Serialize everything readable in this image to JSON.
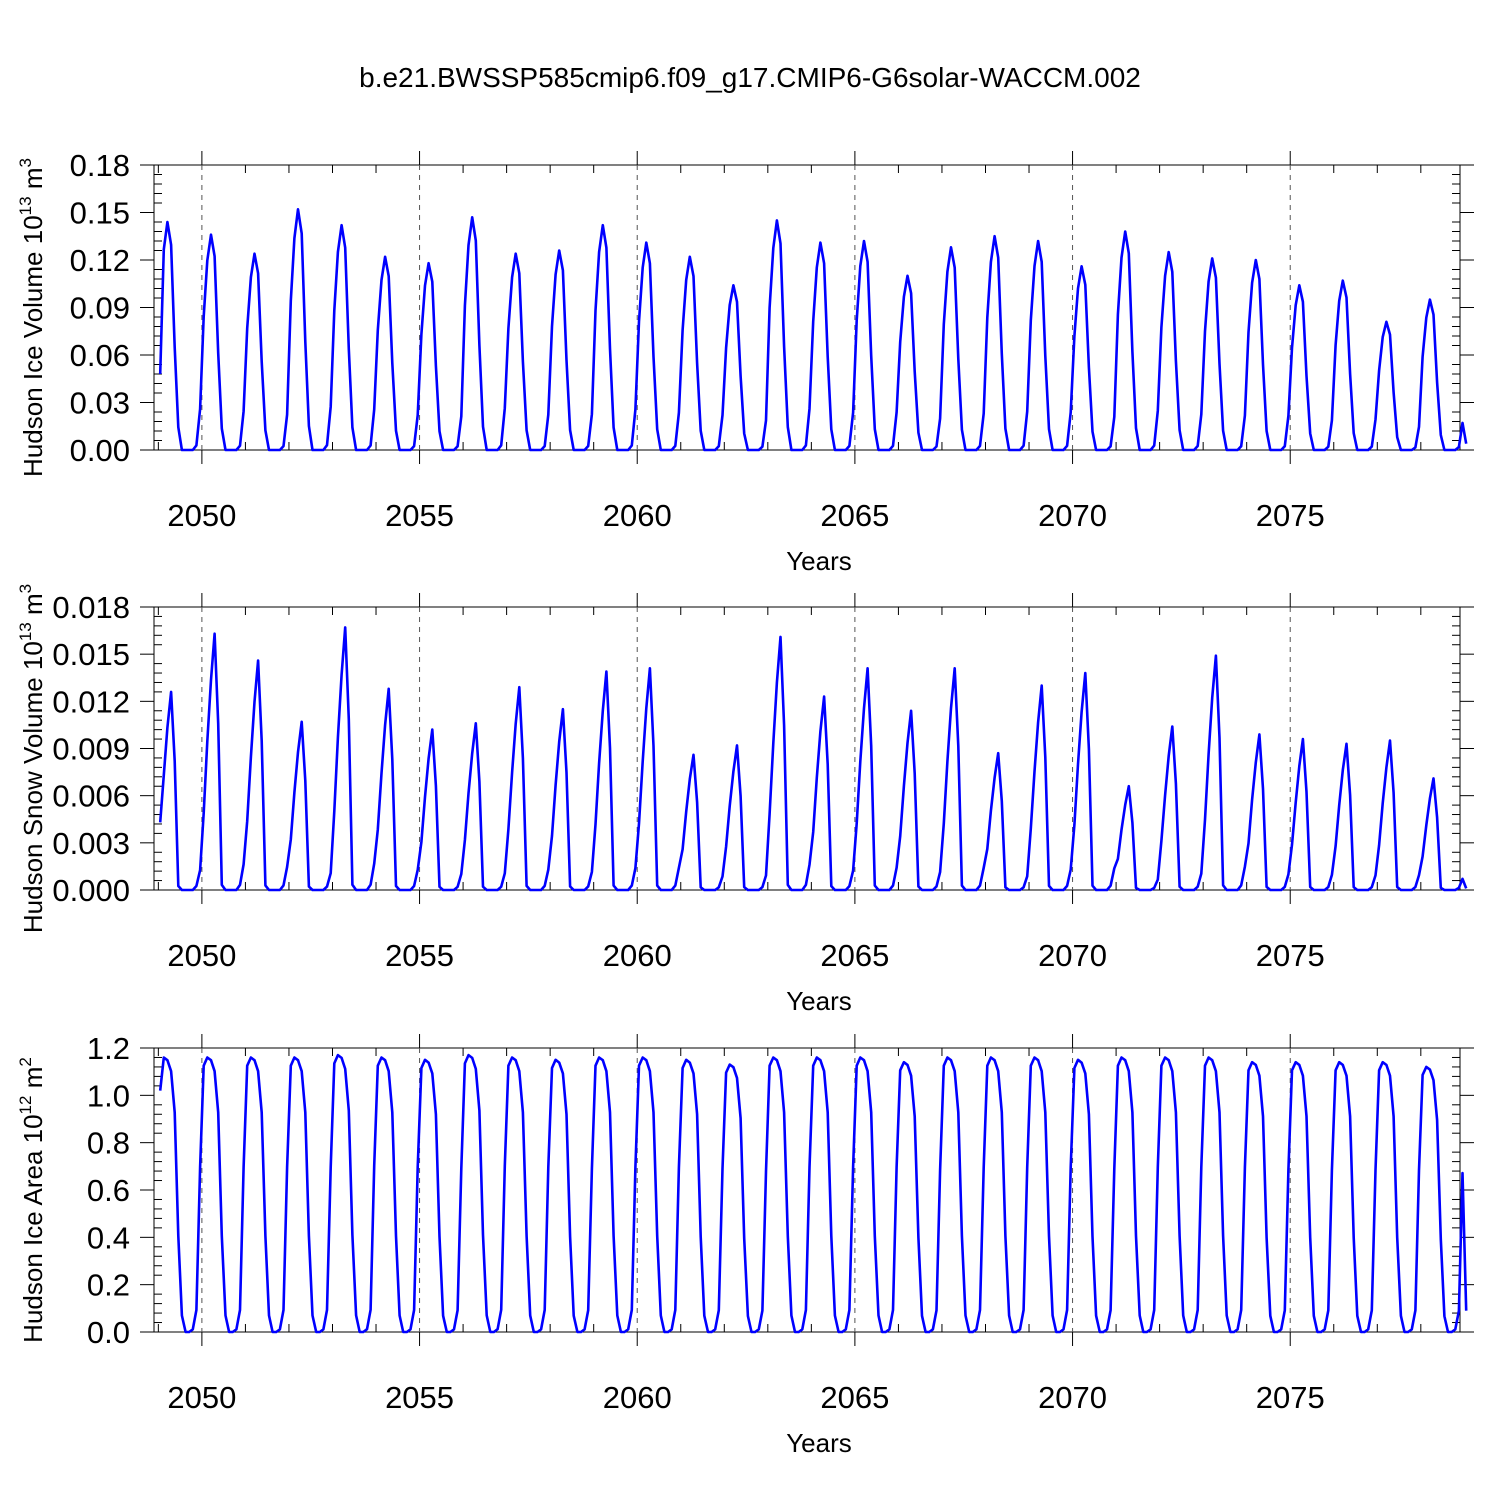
{
  "title": "b.e21.BWSSP585cmip6.f09_g17.CMIP6-G6solar-WACCM.002",
  "line_color": "#0000ff",
  "chart_data": [
    {
      "type": "line",
      "ylabel": "Hudson Ice Volume 10",
      "ylabel_exp": "13",
      "ylabel_unit": " m",
      "ylabel_unit_exp": "3",
      "xlabel": "Years",
      "xlim": [
        2048.9,
        2078.9
      ],
      "ylim": [
        0,
        0.18
      ],
      "yticks": [
        0.0,
        0.03,
        0.06,
        0.09,
        0.12,
        0.15,
        0.18
      ],
      "ytick_labels": [
        "0.00",
        "0.03",
        "0.06",
        "0.09",
        "0.12",
        "0.15",
        "0.18"
      ],
      "xticks": [
        2050,
        2055,
        2060,
        2065,
        2070,
        2075
      ],
      "xtick_labels": [
        "2050",
        "2055",
        "2060",
        "2065",
        "2070",
        "2075"
      ],
      "year_start": 2049,
      "first_value": 0.048,
      "last_value": 0.004,
      "annual_peaks": [
        0.144,
        0.136,
        0.124,
        0.152,
        0.142,
        0.122,
        0.118,
        0.147,
        0.124,
        0.126,
        0.142,
        0.131,
        0.122,
        0.104,
        0.145,
        0.131,
        0.132,
        0.11,
        0.128,
        0.135,
        0.132,
        0.116,
        0.138,
        0.125,
        0.121,
        0.12,
        0.104,
        0.107,
        0.081,
        0.095
      ]
    },
    {
      "type": "line",
      "ylabel": "Hudson Snow Volume 10",
      "ylabel_exp": "13",
      "ylabel_unit": " m",
      "ylabel_unit_exp": "3",
      "xlabel": "Years",
      "xlim": [
        2048.9,
        2078.9
      ],
      "ylim": [
        0,
        0.018
      ],
      "yticks": [
        0.0,
        0.003,
        0.006,
        0.009,
        0.012,
        0.015,
        0.018
      ],
      "ytick_labels": [
        "0.000",
        "0.003",
        "0.006",
        "0.009",
        "0.012",
        "0.015",
        "0.018"
      ],
      "xticks": [
        2050,
        2055,
        2060,
        2065,
        2070,
        2075
      ],
      "xtick_labels": [
        "2050",
        "2055",
        "2060",
        "2065",
        "2070",
        "2075"
      ],
      "year_start": 2049,
      "first_value": 0.0043,
      "last_value": 0.0001,
      "annual_peaks": [
        0.0126,
        0.0163,
        0.0146,
        0.0107,
        0.0167,
        0.0128,
        0.0102,
        0.0106,
        0.0129,
        0.0115,
        0.0139,
        0.0141,
        0.0086,
        0.0092,
        0.0161,
        0.0123,
        0.0141,
        0.0114,
        0.0141,
        0.0087,
        0.013,
        0.0138,
        0.0066,
        0.0104,
        0.0149,
        0.0099,
        0.0096,
        0.0093,
        0.0095,
        0.0071
      ]
    },
    {
      "type": "line",
      "ylabel": "Hudson Ice Area 10",
      "ylabel_exp": "12",
      "ylabel_unit": " m",
      "ylabel_unit_exp": "2",
      "xlabel": "Years",
      "xlim": [
        2048.9,
        2078.9
      ],
      "ylim": [
        0,
        1.2
      ],
      "yticks": [
        0.0,
        0.2,
        0.4,
        0.6,
        0.8,
        1.0,
        1.2
      ],
      "ytick_labels": [
        "0.0",
        "0.2",
        "0.4",
        "0.6",
        "0.8",
        "1.0",
        "1.2"
      ],
      "xticks": [
        2050,
        2055,
        2060,
        2065,
        2070,
        2075
      ],
      "xtick_labels": [
        "2050",
        "2055",
        "2060",
        "2065",
        "2070",
        "2075"
      ],
      "year_start": 2049,
      "first_value": 1.02,
      "last_value": 0.09,
      "annual_peaks": [
        1.16,
        1.16,
        1.16,
        1.16,
        1.17,
        1.16,
        1.15,
        1.17,
        1.16,
        1.15,
        1.16,
        1.16,
        1.15,
        1.13,
        1.16,
        1.16,
        1.16,
        1.14,
        1.16,
        1.16,
        1.16,
        1.15,
        1.16,
        1.16,
        1.16,
        1.14,
        1.14,
        1.14,
        1.14,
        1.12
      ]
    }
  ]
}
